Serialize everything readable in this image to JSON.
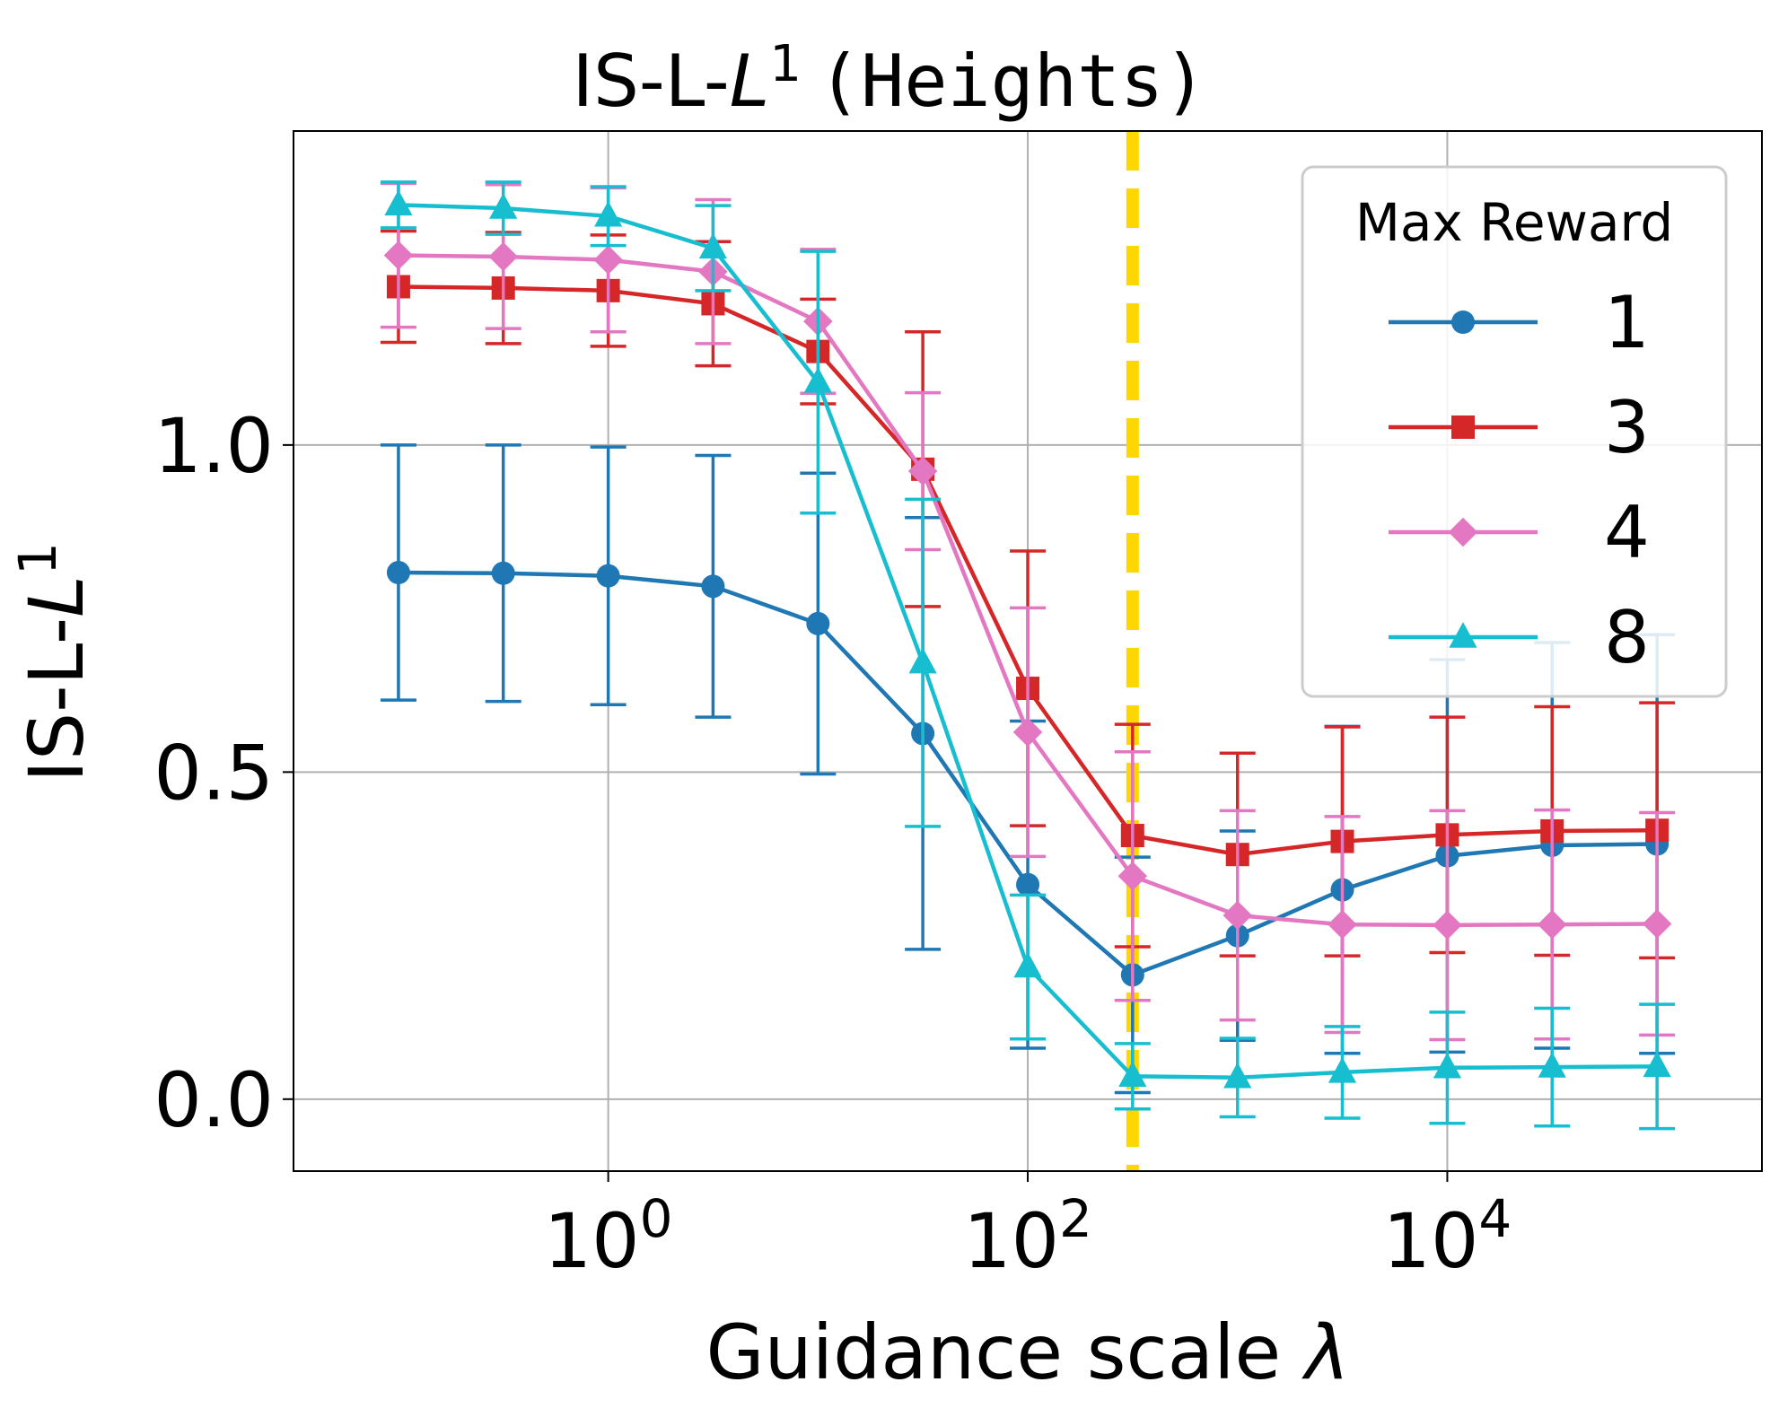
{
  "chart_data": {
    "type": "line",
    "title": {
      "prefix": "IS-L-",
      "italic": "L",
      "superscript": "1",
      "dataset": "(Heights)"
    },
    "xlabel": {
      "text": "Guidance scale ",
      "symbol": "λ"
    },
    "ylabel": {
      "prefix": "IS-L-",
      "italic": "L",
      "superscript": "1"
    },
    "x_scale": "log",
    "xlim": [
      0.0316,
      316228
    ],
    "ylim": [
      -0.11,
      1.48
    ],
    "x_ticks": [
      {
        "value": 1,
        "base": "10",
        "exp": "0"
      },
      {
        "value": 100,
        "base": "10",
        "exp": "2"
      },
      {
        "value": 10000,
        "base": "10",
        "exp": "4"
      }
    ],
    "y_ticks": [
      {
        "value": 0.0,
        "label": "0.0"
      },
      {
        "value": 0.5,
        "label": "0.5"
      },
      {
        "value": 1.0,
        "label": "1.0"
      }
    ],
    "grid": true,
    "x": [
      0.1,
      0.316,
      1,
      3.16,
      10,
      31.6,
      100,
      316,
      1000,
      3160,
      10000,
      31600,
      100000
    ],
    "vline": {
      "x": 316,
      "color": "#ffd700",
      "style": "dashed"
    },
    "legend": {
      "title": "Max Reward",
      "position": "top-right"
    },
    "series": [
      {
        "name": "1",
        "color": "#1f77b4",
        "marker": "circle",
        "values": [
          0.805,
          0.804,
          0.8,
          0.784,
          0.727,
          0.559,
          0.328,
          0.19,
          0.25,
          0.32,
          0.372,
          0.388,
          0.39
        ],
        "errors": [
          0.195,
          0.196,
          0.197,
          0.2,
          0.23,
          0.33,
          0.25,
          0.18,
          0.16,
          0.25,
          0.3,
          0.31,
          0.32
        ]
      },
      {
        "name": "3",
        "color": "#d62728",
        "marker": "square",
        "values": [
          1.242,
          1.24,
          1.236,
          1.216,
          1.143,
          0.963,
          0.628,
          0.403,
          0.374,
          0.394,
          0.404,
          0.41,
          0.411
        ],
        "errors": [
          0.085,
          0.085,
          0.085,
          0.095,
          0.08,
          0.21,
          0.21,
          0.17,
          0.155,
          0.175,
          0.18,
          0.19,
          0.195
        ]
      },
      {
        "name": "4",
        "color": "#e377c2",
        "marker": "diamond",
        "values": [
          1.29,
          1.288,
          1.283,
          1.265,
          1.189,
          0.96,
          0.561,
          0.341,
          0.281,
          0.267,
          0.266,
          0.267,
          0.268
        ],
        "errors": [
          0.11,
          0.11,
          0.11,
          0.11,
          0.11,
          0.12,
          0.19,
          0.19,
          0.16,
          0.165,
          0.175,
          0.175,
          0.17
        ]
      },
      {
        "name": "8",
        "color": "#17becf",
        "marker": "triangle",
        "values": [
          1.367,
          1.362,
          1.35,
          1.301,
          1.096,
          0.667,
          0.202,
          0.035,
          0.033,
          0.041,
          0.048,
          0.049,
          0.05
        ],
        "errors": [
          0.035,
          0.04,
          0.045,
          0.065,
          0.2,
          0.25,
          0.11,
          0.05,
          0.06,
          0.07,
          0.085,
          0.09,
          0.095
        ]
      }
    ]
  }
}
